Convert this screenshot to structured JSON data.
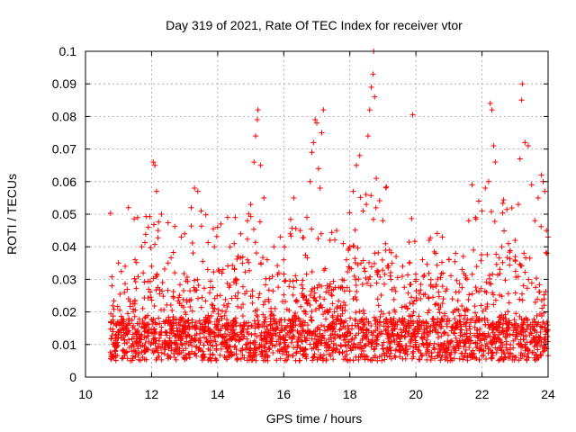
{
  "chart_data": {
    "type": "scatter",
    "title": "Day 319 of 2021, Rate Of TEC Index for receiver vtor",
    "xlabel": "GPS time / hours",
    "ylabel": "ROTI / TECUs",
    "xlim": [
      10,
      24
    ],
    "ylim": [
      0,
      0.1
    ],
    "xticks": [
      "10",
      "12",
      "14",
      "16",
      "18",
      "20",
      "22",
      "24"
    ],
    "yticks": [
      "0",
      "0.01",
      "0.02",
      "0.03",
      "0.04",
      "0.05",
      "0.06",
      "0.07",
      "0.08",
      "0.09",
      "0.1"
    ],
    "grid": true,
    "marker": "plus",
    "color": "#ff0000",
    "series": [
      {
        "name": "ROTI",
        "data": [
          [
            10.8,
            0.028
          ],
          [
            11.0,
            0.035
          ],
          [
            11.2,
            0.034
          ],
          [
            11.3,
            0.052
          ],
          [
            11.5,
            0.036
          ],
          [
            11.7,
            0.04
          ],
          [
            11.9,
            0.046
          ],
          [
            12.0,
            0.034
          ],
          [
            12.05,
            0.066
          ],
          [
            12.1,
            0.065
          ],
          [
            12.15,
            0.057
          ],
          [
            12.2,
            0.045
          ],
          [
            12.3,
            0.05
          ],
          [
            12.5,
            0.035
          ],
          [
            12.7,
            0.032
          ],
          [
            12.9,
            0.043
          ],
          [
            13.0,
            0.044
          ],
          [
            13.2,
            0.052
          ],
          [
            13.3,
            0.058
          ],
          [
            13.4,
            0.057
          ],
          [
            13.5,
            0.051
          ],
          [
            13.7,
            0.033
          ],
          [
            13.9,
            0.04
          ],
          [
            14.0,
            0.046
          ],
          [
            14.1,
            0.047
          ],
          [
            14.3,
            0.049
          ],
          [
            14.5,
            0.041
          ],
          [
            14.7,
            0.044
          ],
          [
            14.9,
            0.048
          ],
          [
            15.0,
            0.053
          ],
          [
            15.1,
            0.066
          ],
          [
            15.15,
            0.074
          ],
          [
            15.2,
            0.079
          ],
          [
            15.22,
            0.082
          ],
          [
            15.3,
            0.065
          ],
          [
            15.4,
            0.055
          ],
          [
            15.5,
            0.036
          ],
          [
            15.7,
            0.04
          ],
          [
            15.9,
            0.043
          ],
          [
            16.0,
            0.036
          ],
          [
            16.2,
            0.044
          ],
          [
            16.3,
            0.055
          ],
          [
            16.5,
            0.045
          ],
          [
            16.7,
            0.049
          ],
          [
            16.8,
            0.06
          ],
          [
            16.85,
            0.069
          ],
          [
            16.9,
            0.072
          ],
          [
            16.95,
            0.079
          ],
          [
            17.0,
            0.078
          ],
          [
            17.05,
            0.064
          ],
          [
            17.1,
            0.058
          ],
          [
            17.15,
            0.075
          ],
          [
            17.2,
            0.082
          ],
          [
            17.4,
            0.042
          ],
          [
            17.6,
            0.045
          ],
          [
            17.8,
            0.041
          ],
          [
            18.0,
            0.04
          ],
          [
            18.1,
            0.057
          ],
          [
            18.2,
            0.065
          ],
          [
            18.3,
            0.068
          ],
          [
            18.4,
            0.051
          ],
          [
            18.5,
            0.053
          ],
          [
            18.55,
            0.074
          ],
          [
            18.6,
            0.082
          ],
          [
            18.65,
            0.089
          ],
          [
            18.7,
            0.093
          ],
          [
            18.72,
            0.1
          ],
          [
            18.75,
            0.086
          ],
          [
            18.8,
            0.061
          ],
          [
            19.0,
            0.048
          ],
          [
            19.2,
            0.039
          ],
          [
            19.4,
            0.037
          ],
          [
            19.6,
            0.034
          ],
          [
            19.8,
            0.035
          ],
          [
            19.9,
            0.0805
          ],
          [
            20.0,
            0.03
          ],
          [
            20.2,
            0.036
          ],
          [
            20.4,
            0.042
          ],
          [
            20.6,
            0.038
          ],
          [
            20.8,
            0.043
          ],
          [
            21.0,
            0.036
          ],
          [
            21.2,
            0.038
          ],
          [
            21.4,
            0.033
          ],
          [
            21.6,
            0.048
          ],
          [
            21.7,
            0.059
          ],
          [
            21.8,
            0.049
          ],
          [
            21.9,
            0.054
          ],
          [
            22.0,
            0.051
          ],
          [
            22.1,
            0.058
          ],
          [
            22.2,
            0.06
          ],
          [
            22.25,
            0.084
          ],
          [
            22.3,
            0.082
          ],
          [
            22.35,
            0.071
          ],
          [
            22.4,
            0.066
          ],
          [
            22.6,
            0.04
          ],
          [
            22.8,
            0.041
          ],
          [
            23.0,
            0.042
          ],
          [
            23.1,
            0.053
          ],
          [
            23.15,
            0.067
          ],
          [
            23.2,
            0.085
          ],
          [
            23.22,
            0.09
          ],
          [
            23.3,
            0.072
          ],
          [
            23.4,
            0.071
          ],
          [
            23.5,
            0.059
          ],
          [
            23.6,
            0.048
          ],
          [
            23.7,
            0.055
          ],
          [
            23.8,
            0.062
          ],
          [
            23.85,
            0.06
          ],
          [
            23.9,
            0.057
          ],
          [
            23.95,
            0.045
          ],
          [
            24.0,
            0.043
          ]
        ]
      }
    ]
  }
}
